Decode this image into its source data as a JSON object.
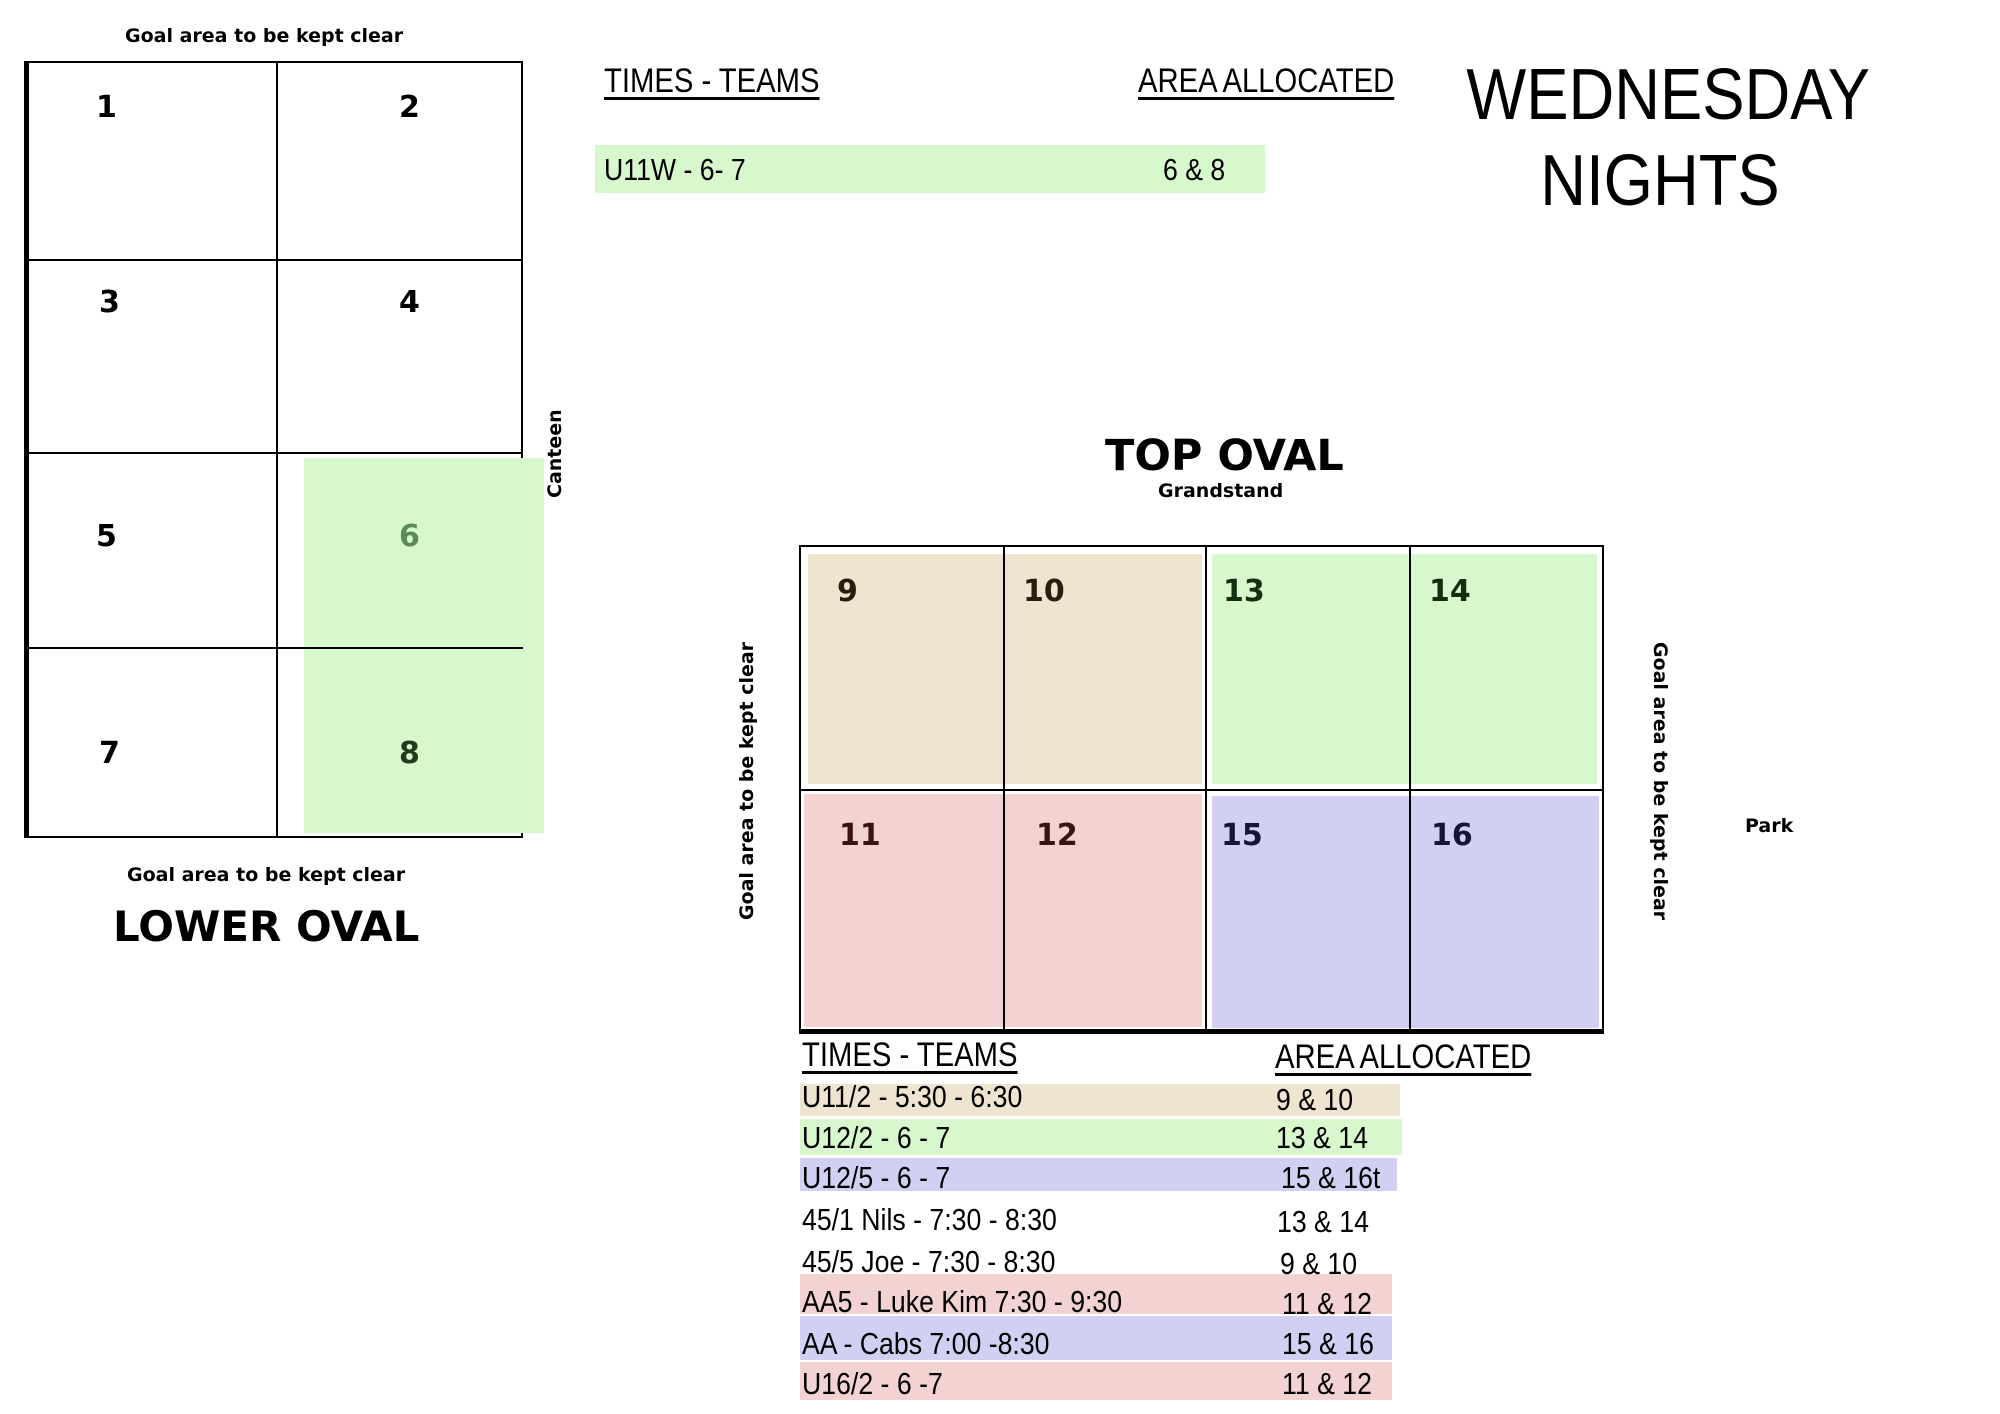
{
  "colors": {
    "tan": "#efe4d0",
    "green": "#d7f8cc",
    "pink": "#f3d2d2",
    "blue": "#d1d0f2"
  },
  "header": {
    "title_line1": "WEDNESDAY",
    "title_line2": "NIGHTS"
  },
  "lower_oval": {
    "top_note": "Goal area to be kept clear",
    "bottom_note": "Goal area to be kept clear",
    "side_label": "Canteen",
    "name": "LOWER OVAL",
    "cells": [
      "1",
      "2",
      "3",
      "4",
      "5",
      "6",
      "7",
      "8"
    ]
  },
  "lower_schedule": {
    "times_header": "TIMES - TEAMS",
    "area_header": "AREA ALLOCATED",
    "rows": [
      {
        "team": "U11W - 6- 7",
        "area": "6 & 8"
      }
    ]
  },
  "top_oval": {
    "name": "TOP OVAL",
    "subtitle": "Grandstand",
    "left_note": "Goal area to be kept clear",
    "right_note": "Goal area to be kept clear",
    "side_label": "Park",
    "cells": [
      "9",
      "10",
      "13",
      "14",
      "11",
      "12",
      "15",
      "16"
    ]
  },
  "top_schedule": {
    "times_header": "TIMES - TEAMS",
    "area_header": "AREA ALLOCATED",
    "rows": [
      {
        "team": "U11/2 - 5:30 - 6:30",
        "area": "9 & 10"
      },
      {
        "team": "U12/2 - 6 - 7",
        "area": "13 & 14"
      },
      {
        "team": "U12/5 - 6 - 7",
        "area": "15 & 16t"
      },
      {
        "team": "45/1 Nils - 7:30 - 8:30",
        "area": "13 & 14"
      },
      {
        "team": "45/5 Joe - 7:30 - 8:30",
        "area": "9 & 10"
      },
      {
        "team": "AA5 - Luke Kim 7:30 - 9:30",
        "area": "11 & 12"
      },
      {
        "team": "AA - Cabs 7:00 -8:30",
        "area": "15 & 16"
      },
      {
        "team": "U16/2 - 6 -7",
        "area": "11 & 12"
      }
    ]
  }
}
